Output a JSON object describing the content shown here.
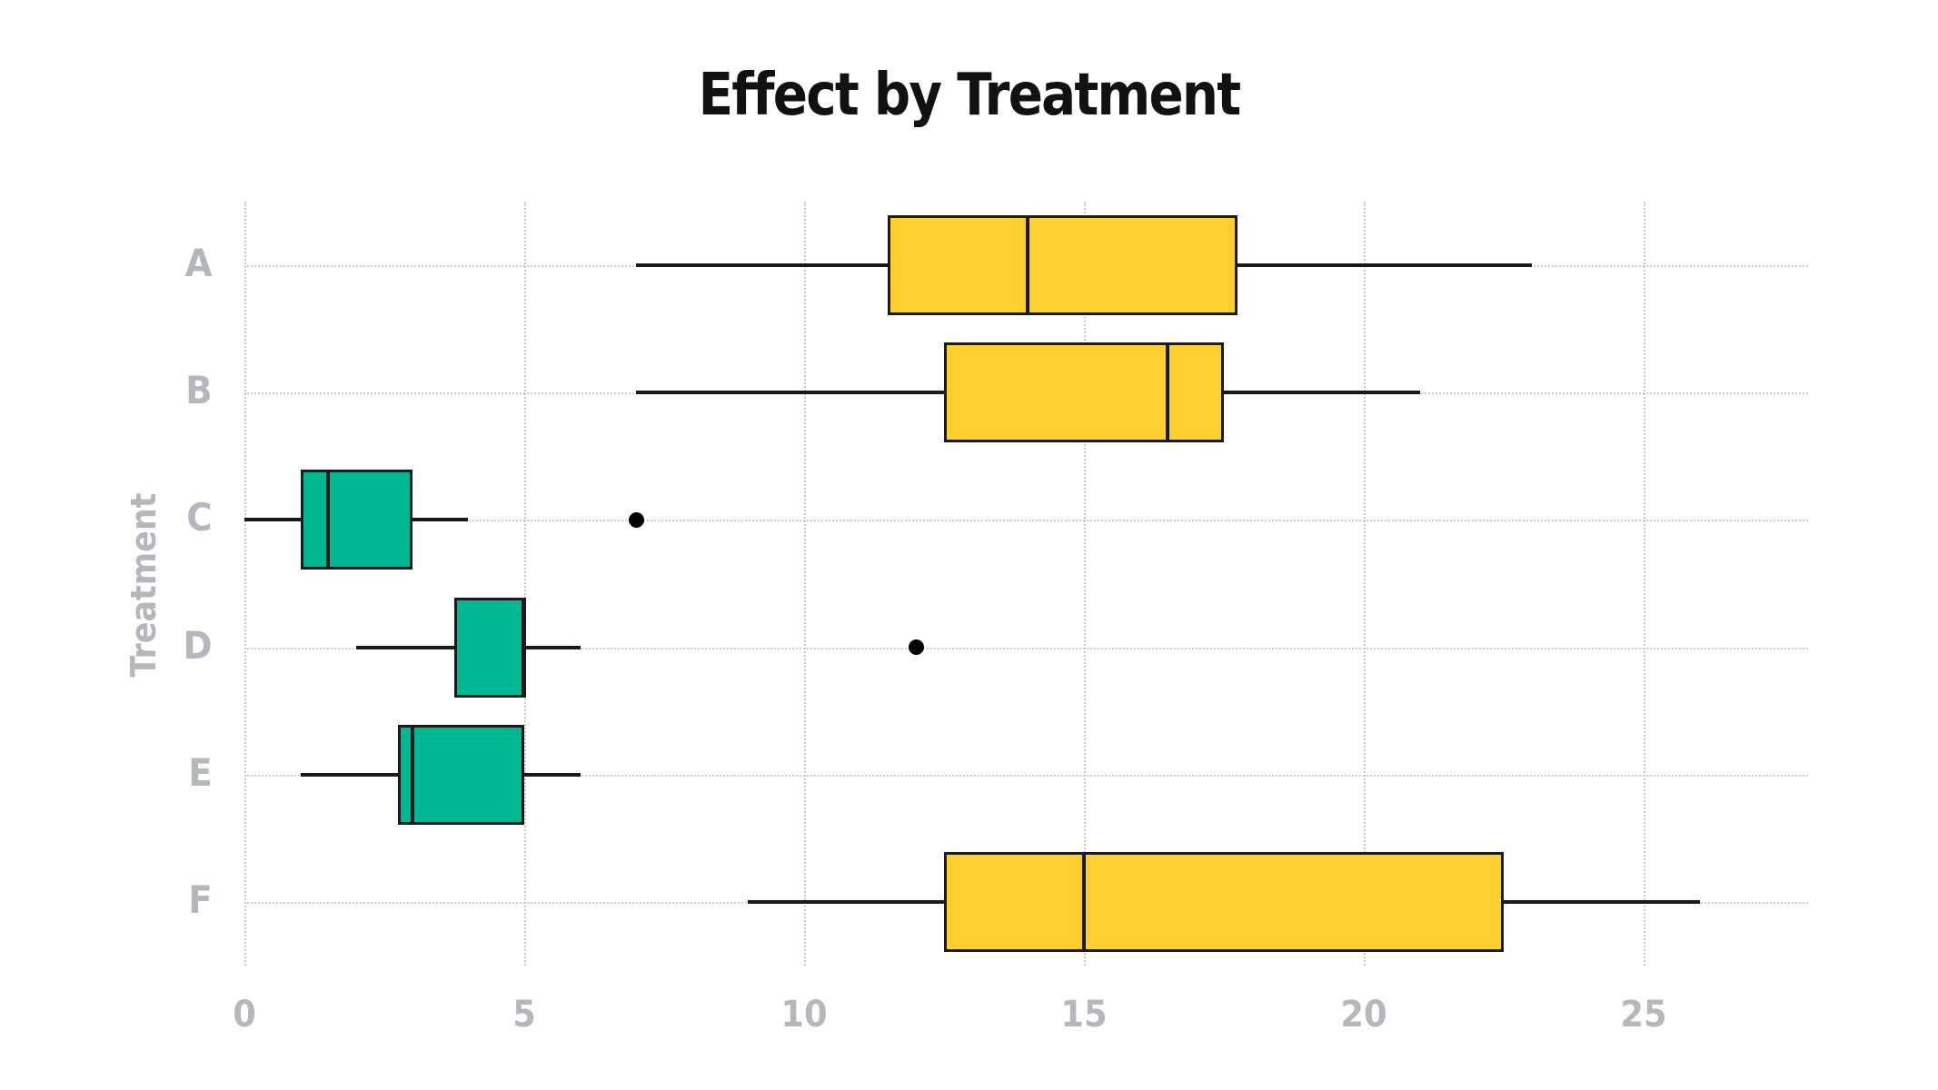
{
  "chart_data": {
    "type": "boxplot",
    "orientation": "horizontal",
    "title": "Effect by Treatment",
    "xlabel": "",
    "ylabel": "Treatment",
    "categories": [
      "A",
      "B",
      "C",
      "D",
      "E",
      "F"
    ],
    "x_ticks": [
      0,
      5,
      10,
      15,
      20,
      25
    ],
    "xlim": [
      0,
      28
    ],
    "grid": "dotted-both-axes",
    "legend": "none",
    "series": [
      {
        "category": "A",
        "color_group": "yellow",
        "whisker_low": 7,
        "q1": 11.5,
        "median": 14,
        "q3": 17.75,
        "whisker_high": 23,
        "outliers": []
      },
      {
        "category": "B",
        "color_group": "yellow",
        "whisker_low": 7,
        "q1": 12.5,
        "median": 16.5,
        "q3": 17.5,
        "whisker_high": 21,
        "outliers": []
      },
      {
        "category": "C",
        "color_group": "teal",
        "whisker_low": 0,
        "q1": 1,
        "median": 1.5,
        "q3": 3,
        "whisker_high": 4,
        "outliers": [
          7
        ]
      },
      {
        "category": "D",
        "color_group": "teal",
        "whisker_low": 2,
        "q1": 3.75,
        "median": 5,
        "q3": 5,
        "whisker_high": 6,
        "outliers": [
          12
        ]
      },
      {
        "category": "E",
        "color_group": "teal",
        "whisker_low": 1,
        "q1": 2.75,
        "median": 3,
        "q3": 5,
        "whisker_high": 6,
        "outliers": []
      },
      {
        "category": "F",
        "color_group": "yellow",
        "whisker_low": 9,
        "q1": 12.5,
        "median": 15,
        "q3": 22.5,
        "whisker_high": 26,
        "outliers": []
      }
    ],
    "colors": {
      "yellow": "#FED02F",
      "teal": "#00B892",
      "box_border": "#1a1a1a",
      "median_line": "#1a1a1a",
      "outlier": "#000000",
      "grid": "#c9cbcd",
      "axis_text": "#b4b8be",
      "title_text": "#111111",
      "background": "#ffffff"
    }
  }
}
